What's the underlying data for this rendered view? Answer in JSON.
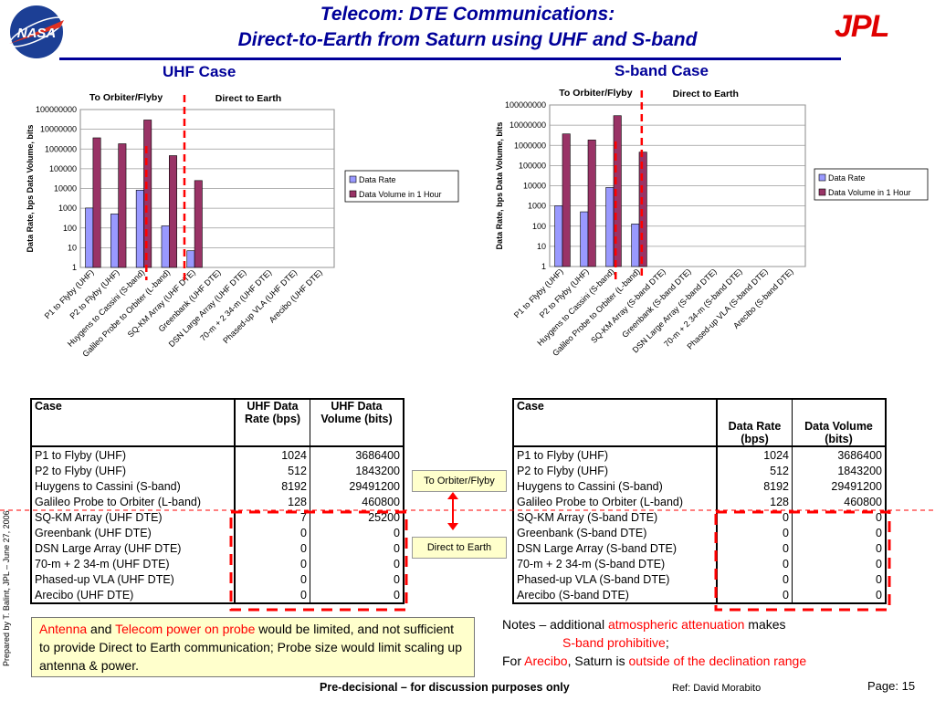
{
  "header": {
    "title_line1": "Telecom: DTE Communications:",
    "title_line2": "Direct-to-Earth from Saturn using UHF and S-band",
    "nasa_logo_text": "NASA",
    "jpl_logo_text": "JPL"
  },
  "colors": {
    "title": "#000099",
    "data_rate": "#9999ff",
    "data_volume": "#993366",
    "divider": "#ff0000",
    "note_bg": "#ffffcc"
  },
  "uhf": {
    "case_heading": "UHF Case",
    "label_orbiter": "To Orbiter/Flyby",
    "label_dte": "Direct to Earth"
  },
  "sband": {
    "case_heading": "S-band Case",
    "label_orbiter": "To Orbiter/Flyby",
    "label_dte": "Direct to Earth"
  },
  "chart_data": [
    {
      "type": "bar",
      "yscale": "log",
      "ylim": [
        1,
        100000000
      ],
      "yticks": [
        "1",
        "10",
        "100",
        "1000",
        "10000",
        "100000",
        "1000000",
        "10000000",
        "100000000"
      ],
      "ylabel": "Data Rate, bps  Data Volume, bits",
      "legend_position": "right",
      "categories": [
        "P1 to Flyby (UHF)",
        "P2 to Flyby (UHF)",
        "Huygens to Cassini (S-band)",
        "Galileo Probe to Orbiter (L-band)",
        "SQ-KM Array (UHF DTE)",
        "Greenbank (UHF DTE)",
        "DSN Large Array (UHF DTE)",
        "70-m + 2 34-m (UHF DTE)",
        "Phased-up VLA (UHF DTE)",
        "Arecibo (UHF DTE)"
      ],
      "series": [
        {
          "name": "Data Rate",
          "values": [
            1024,
            512,
            8192,
            128,
            7,
            0,
            0,
            0,
            0,
            0
          ]
        },
        {
          "name": "Data Volume in 1 Hour",
          "values": [
            3686400,
            1843200,
            29491200,
            460800,
            25200,
            0,
            0,
            0,
            0,
            0
          ]
        }
      ]
    },
    {
      "type": "bar",
      "yscale": "log",
      "ylim": [
        1,
        100000000
      ],
      "yticks": [
        "1",
        "10",
        "100",
        "1000",
        "10000",
        "100000",
        "1000000",
        "10000000",
        "100000000"
      ],
      "ylabel": "Data Rate, bps  Data Volume, bits",
      "legend_position": "right",
      "categories": [
        "P1 to Flyby (UHF)",
        "P2 to Flyby (UHF)",
        "Huygens to Cassini (S-band)",
        "Galileo Probe to Orbiter (L-band)",
        "SQ-KM Array (S-band DTE)",
        "Greenbank (S-band DTE)",
        "DSN Large Array (S-band DTE)",
        "70-m + 2 34-m (S-band DTE)",
        "Phased-up VLA (S-band DTE)",
        "Arecibo (S-band DTE)"
      ],
      "series": [
        {
          "name": "Data Rate",
          "values": [
            1024,
            512,
            8192,
            128,
            0,
            0,
            0,
            0,
            0,
            0
          ]
        },
        {
          "name": "Data Volume in 1 Hour",
          "values": [
            3686400,
            1843200,
            29491200,
            460800,
            0,
            0,
            0,
            0,
            0,
            0
          ]
        }
      ]
    }
  ],
  "table_uhf": {
    "headers": [
      "Case",
      "UHF Data Rate (bps)",
      "UHF Data Volume (bits)"
    ],
    "rows": [
      [
        "P1 to Flyby (UHF)",
        "1024",
        "3686400"
      ],
      [
        "P2 to Flyby (UHF)",
        "512",
        "1843200"
      ],
      [
        "Huygens to Cassini (S-band)",
        "8192",
        "29491200"
      ],
      [
        "Galileo Probe to Orbiter (L-band)",
        "128",
        "460800"
      ],
      [
        "SQ-KM Array (UHF DTE)",
        "7",
        "25200"
      ],
      [
        "Greenbank (UHF DTE)",
        "0",
        "0"
      ],
      [
        "DSN Large Array (UHF DTE)",
        "0",
        "0"
      ],
      [
        "70-m + 2 34-m (UHF DTE)",
        "0",
        "0"
      ],
      [
        "Phased-up VLA (UHF DTE)",
        "0",
        "0"
      ],
      [
        "Arecibo (UHF DTE)",
        "0",
        "0"
      ]
    ]
  },
  "table_sband": {
    "headers": [
      "Case",
      "Data Rate (bps)",
      "Data Volume (bits)"
    ],
    "rows": [
      [
        "P1 to Flyby (UHF)",
        "1024",
        "3686400"
      ],
      [
        "P2 to Flyby (UHF)",
        "512",
        "1843200"
      ],
      [
        "Huygens to Cassini (S-band)",
        "8192",
        "29491200"
      ],
      [
        "Galileo Probe to Orbiter (L-band)",
        "128",
        "460800"
      ],
      [
        "SQ-KM Array (S-band DTE)",
        "0",
        "0"
      ],
      [
        "Greenbank (S-band DTE)",
        "0",
        "0"
      ],
      [
        "DSN Large Array (S-band DTE)",
        "0",
        "0"
      ],
      [
        "70-m + 2 34-m (S-band DTE)",
        "0",
        "0"
      ],
      [
        "Phased-up VLA (S-band DTE)",
        "0",
        "0"
      ],
      [
        "Arecibo (S-band DTE)",
        "0",
        "0"
      ]
    ]
  },
  "middle_labels": {
    "orbiter": "To Orbiter/Flyby",
    "dte": "Direct to Earth"
  },
  "note_box": {
    "p1": "Antenna",
    "p2": " and ",
    "p3": "Telecom power on probe",
    "p4": " would be limited, and not sufficient to provide Direct to Earth communication; Probe size would limit scaling up antenna & power."
  },
  "notes": {
    "n1": "Notes – additional ",
    "n2": "atmospheric attenuation",
    "n3": " makes",
    "n4": "S-band prohibitive",
    "n5": ";",
    "n6": "For ",
    "n7": "Arecibo",
    "n8": ", Saturn is ",
    "n9": "outside of the declination range"
  },
  "footer": {
    "center": "Pre-decisional – for discussion purposes only",
    "ref": "Ref: David Morabito",
    "page": "Page: 15",
    "side": "Prepared by T. Balint, JPL – June 27, 2006"
  }
}
